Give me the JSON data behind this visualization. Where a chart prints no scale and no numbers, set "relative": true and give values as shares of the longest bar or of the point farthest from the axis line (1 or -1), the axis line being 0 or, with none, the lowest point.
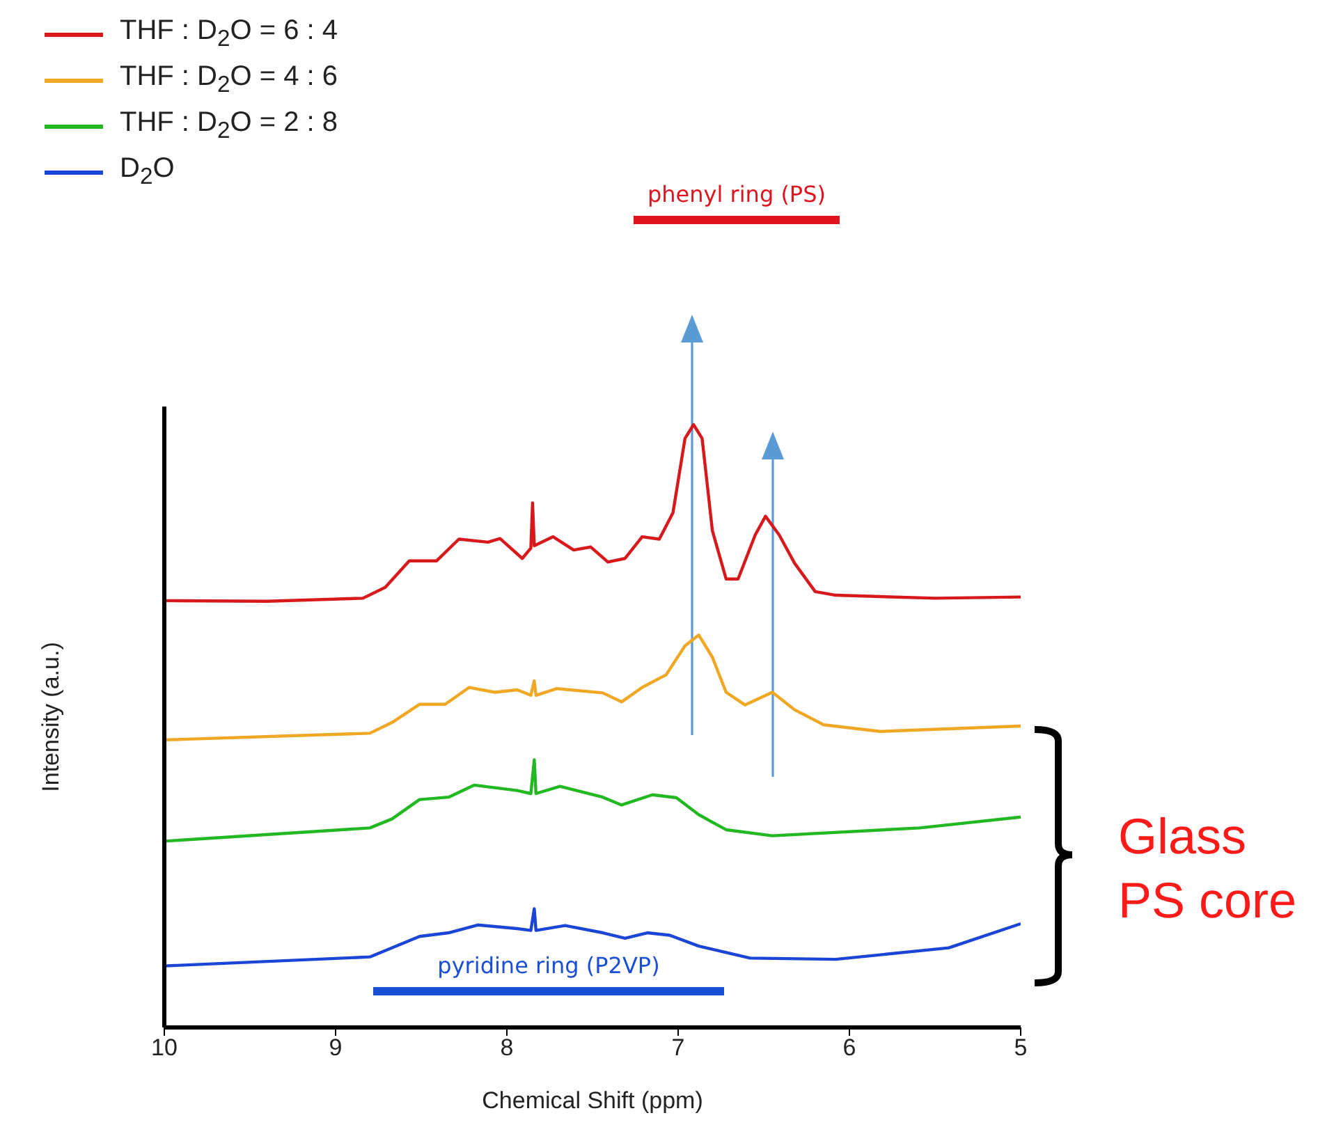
{
  "chart_data": {
    "type": "line",
    "relative": true,
    "xlabel": "Chemical Shift (ppm)",
    "ylabel": "Intensity (a.u.)",
    "xlim": [
      10,
      5
    ],
    "xticks": [
      10,
      9,
      8,
      7,
      6,
      5
    ],
    "tick_labels": "x",
    "legend": "top left",
    "series": [
      {
        "name": "THF : D$_{2}$O = 6 : 4",
        "color": "#d7191c",
        "x": [
          10.0,
          9.4,
          8.84,
          8.71,
          8.57,
          8.41,
          8.28,
          8.11,
          8.04,
          7.91,
          7.86,
          7.85,
          7.84,
          7.73,
          7.61,
          7.51,
          7.41,
          7.31,
          7.21,
          7.11,
          7.03,
          6.96,
          6.91,
          6.86,
          6.8,
          6.72,
          6.65,
          6.55,
          6.49,
          6.41,
          6.32,
          6.2,
          6.08,
          5.5,
          5.0
        ],
        "values": [
          0.708,
          0.707,
          0.712,
          0.73,
          0.774,
          0.774,
          0.81,
          0.805,
          0.811,
          0.778,
          0.795,
          0.87,
          0.799,
          0.814,
          0.792,
          0.797,
          0.772,
          0.778,
          0.814,
          0.81,
          0.854,
          0.977,
          1.0,
          0.977,
          0.824,
          0.744,
          0.744,
          0.817,
          0.848,
          0.817,
          0.77,
          0.723,
          0.717,
          0.712,
          0.714
        ]
      },
      {
        "name": "THF : D$_{2}$O = 4 : 6",
        "color": "#f0a824",
        "x": [
          10.0,
          8.8,
          8.67,
          8.51,
          8.36,
          8.22,
          8.07,
          7.94,
          7.86,
          7.84,
          7.83,
          7.71,
          7.44,
          7.33,
          7.21,
          7.07,
          6.96,
          6.88,
          6.8,
          6.72,
          6.61,
          6.45,
          6.32,
          6.15,
          5.82,
          5.0
        ],
        "values": [
          0.477,
          0.488,
          0.506,
          0.536,
          0.536,
          0.564,
          0.556,
          0.56,
          0.551,
          0.575,
          0.551,
          0.562,
          0.555,
          0.54,
          0.564,
          0.585,
          0.633,
          0.651,
          0.614,
          0.556,
          0.535,
          0.556,
          0.527,
          0.502,
          0.491,
          0.5
        ]
      },
      {
        "name": "THF : D$_{2}$O = 2 : 8",
        "color": "#22b822",
        "x": [
          10.0,
          8.8,
          8.67,
          8.51,
          8.34,
          8.19,
          7.94,
          7.86,
          7.84,
          7.83,
          7.69,
          7.44,
          7.33,
          7.15,
          7.01,
          6.88,
          6.72,
          6.45,
          5.59,
          5.0
        ],
        "values": [
          0.309,
          0.331,
          0.346,
          0.378,
          0.382,
          0.402,
          0.393,
          0.388,
          0.444,
          0.388,
          0.4,
          0.382,
          0.369,
          0.386,
          0.381,
          0.353,
          0.328,
          0.318,
          0.331,
          0.349
        ]
      },
      {
        "name": "D$_{2}$O",
        "color": "#1a45d6",
        "x": [
          10.0,
          8.8,
          8.51,
          8.34,
          8.17,
          7.94,
          7.86,
          7.84,
          7.83,
          7.66,
          7.44,
          7.31,
          7.18,
          7.05,
          6.88,
          6.58,
          6.08,
          5.42,
          5.0
        ],
        "values": [
          0.102,
          0.117,
          0.151,
          0.157,
          0.17,
          0.164,
          0.161,
          0.197,
          0.161,
          0.169,
          0.157,
          0.148,
          0.157,
          0.153,
          0.135,
          0.115,
          0.113,
          0.132,
          0.172
        ]
      }
    ],
    "annotations": [
      "phenyl ring (PS)",
      "pyridine ring (P2VP)",
      "Glass PS core"
    ]
  }
}
